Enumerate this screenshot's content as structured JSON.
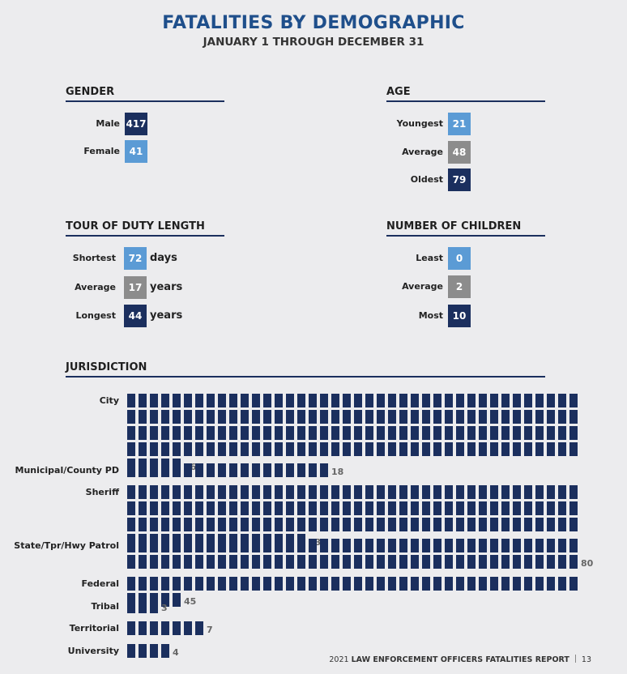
{
  "header": {
    "title": "FATALITIES BY DEMOGRAPHIC",
    "subtitle": "JANUARY 1 THROUGH DECEMBER 31"
  },
  "gender": {
    "heading": "GENDER",
    "rows": [
      {
        "label": "Male",
        "value": "417",
        "tone": "dark"
      },
      {
        "label": "Female",
        "value": "41",
        "tone": "light"
      }
    ]
  },
  "age": {
    "heading": "AGE",
    "rows": [
      {
        "label": "Youngest",
        "value": "21",
        "tone": "light"
      },
      {
        "label": "Average",
        "value": "48",
        "tone": "gray"
      },
      {
        "label": "Oldest",
        "value": "79",
        "tone": "dark"
      }
    ]
  },
  "tour": {
    "heading": "TOUR OF DUTY LENGTH",
    "rows": [
      {
        "label": "Shortest",
        "value": "72",
        "unit": "days",
        "tone": "light"
      },
      {
        "label": "Average",
        "value": "17",
        "unit": "years",
        "tone": "gray"
      },
      {
        "label": "Longest",
        "value": "44",
        "unit": "years",
        "tone": "dark"
      }
    ]
  },
  "children": {
    "heading": "NUMBER OF CHILDREN",
    "rows": [
      {
        "label": "Least",
        "value": "0",
        "tone": "light"
      },
      {
        "label": "Average",
        "value": "2",
        "tone": "gray"
      },
      {
        "label": "Most",
        "value": "10",
        "tone": "dark"
      }
    ]
  },
  "jurisdiction": {
    "heading": "JURISDICTION",
    "items": [
      {
        "label": "City",
        "count": 165
      },
      {
        "label": "Municipal/County PD",
        "count": 18
      },
      {
        "label": "Sheriff",
        "count": 136
      },
      {
        "label": "State/Tpr/Hwy Patrol",
        "count": 80
      },
      {
        "label": "Federal",
        "count": 45
      },
      {
        "label": "Tribal",
        "count": 3
      },
      {
        "label": "Territorial",
        "count": 7
      },
      {
        "label": "University",
        "count": 4
      }
    ]
  },
  "colors": {
    "dark": "#1b2f5e",
    "light": "#5b9bd5",
    "gray": "#8c8c8c",
    "title": "#1f4f8b"
  },
  "footer": {
    "report": "2021 ",
    "report_bold": "LAW ENFORCEMENT OFFICERS FATALITIES REPORT",
    "page": "13"
  }
}
